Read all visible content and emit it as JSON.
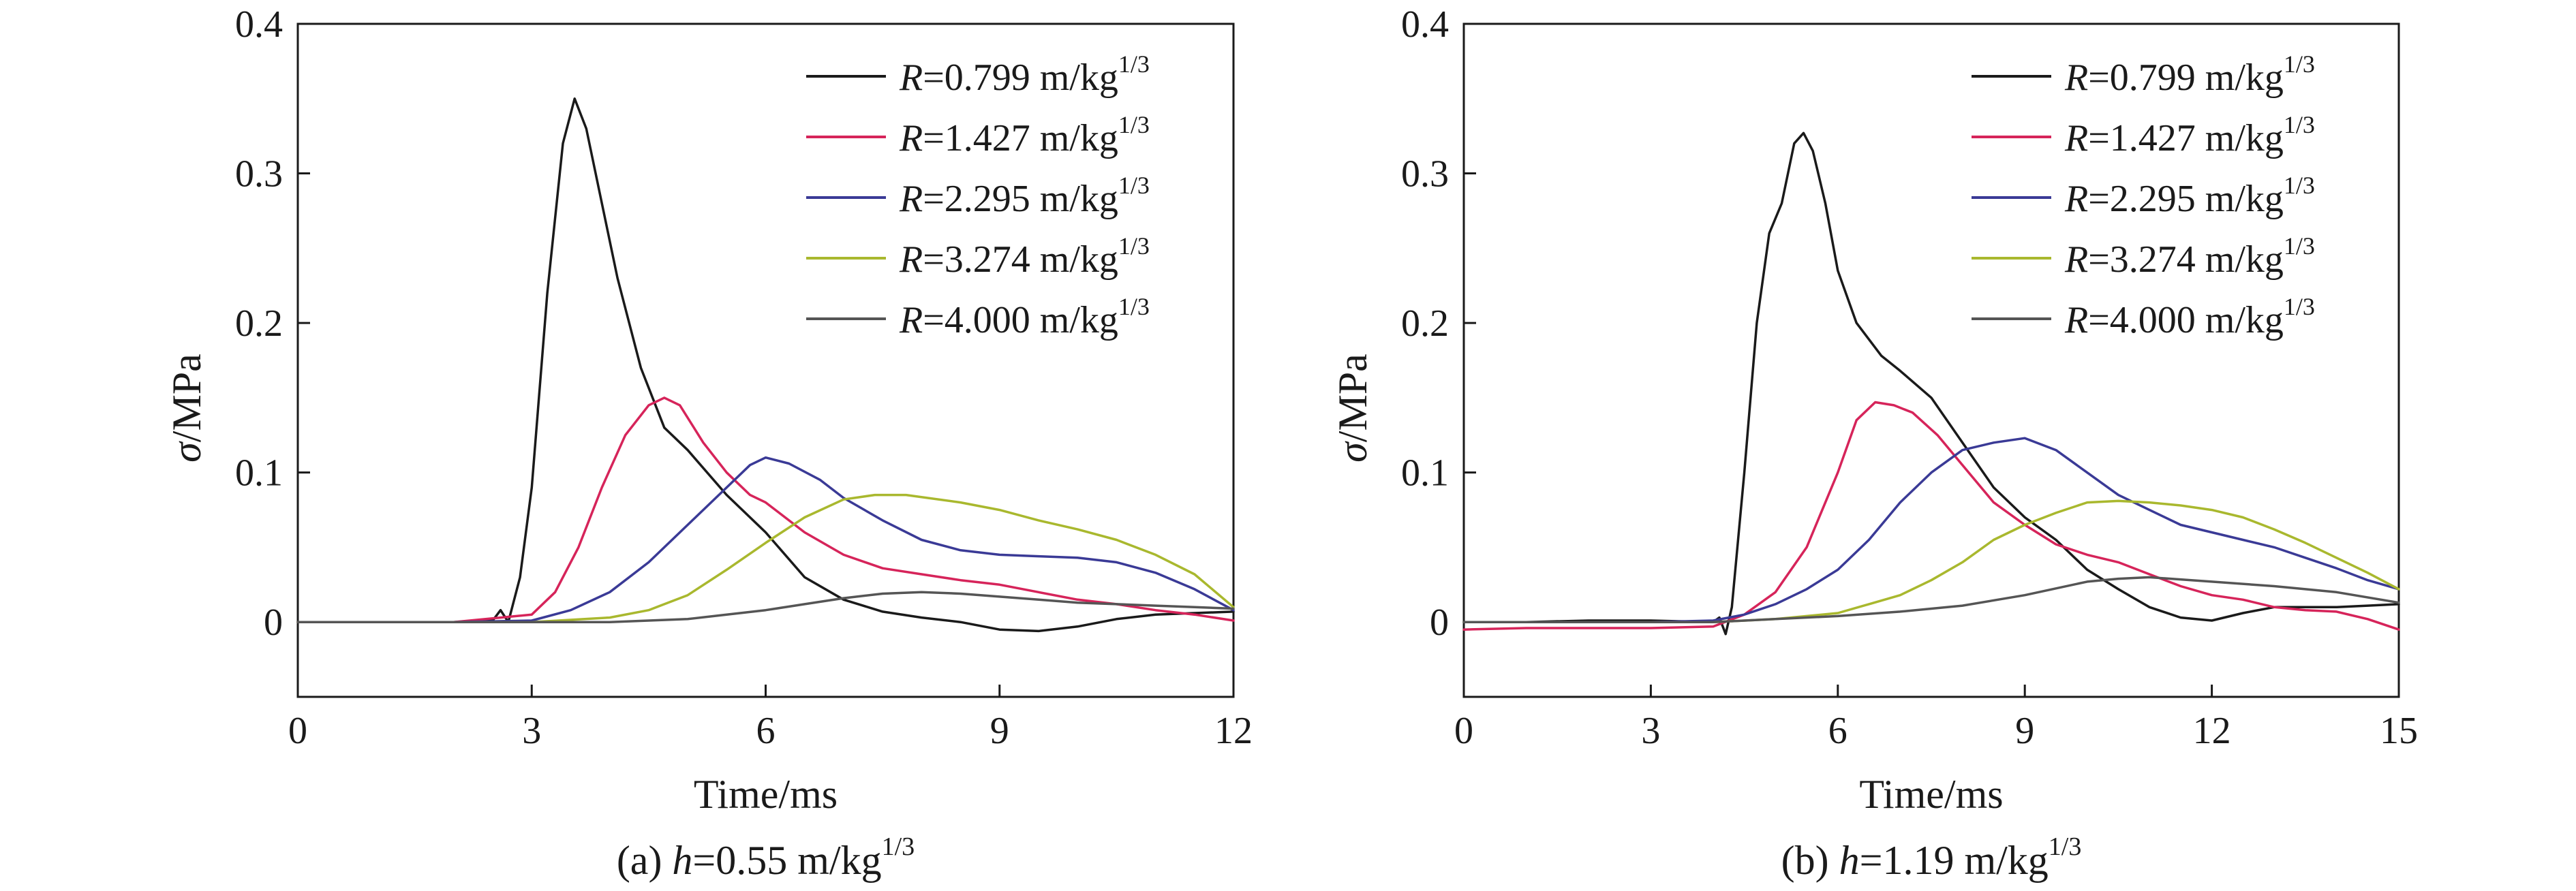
{
  "chart_data": [
    {
      "type": "line",
      "caption_prefix": "(a) ",
      "caption_var": "h",
      "caption_value": "=0.55 m/kg",
      "caption_exp": "1/3",
      "xlabel": "Time/ms",
      "ylabel_symbol": "σ",
      "ylabel_unit": "/MPa",
      "xlim": [
        0,
        12
      ],
      "ylim": [
        -0.05,
        0.4
      ],
      "xticks": [
        "0",
        "3",
        "6",
        "9",
        "12"
      ],
      "yticks": [
        "0",
        "0.1",
        "0.2",
        "0.3",
        "0.4"
      ],
      "legend_position": "top-right",
      "series": [
        {
          "var": "R",
          "name": "=0.799 m/kg",
          "exp": "1/3",
          "color": "#1a1a1a",
          "points": [
            [
              0,
              0
            ],
            [
              1,
              0
            ],
            [
              2,
              0
            ],
            [
              2.5,
              0.001
            ],
            [
              2.6,
              0.008
            ],
            [
              2.7,
              0
            ],
            [
              2.85,
              0.03
            ],
            [
              3.0,
              0.09
            ],
            [
              3.2,
              0.22
            ],
            [
              3.4,
              0.32
            ],
            [
              3.55,
              0.35
            ],
            [
              3.7,
              0.33
            ],
            [
              3.9,
              0.28
            ],
            [
              4.1,
              0.23
            ],
            [
              4.4,
              0.17
            ],
            [
              4.7,
              0.13
            ],
            [
              5.0,
              0.115
            ],
            [
              5.5,
              0.085
            ],
            [
              6.0,
              0.06
            ],
            [
              6.5,
              0.03
            ],
            [
              7.0,
              0.015
            ],
            [
              7.5,
              0.007
            ],
            [
              8.0,
              0.003
            ],
            [
              8.5,
              0
            ],
            [
              9.0,
              -0.005
            ],
            [
              9.5,
              -0.006
            ],
            [
              10.0,
              -0.003
            ],
            [
              10.5,
              0.002
            ],
            [
              11.0,
              0.005
            ],
            [
              11.5,
              0.006
            ],
            [
              12,
              0.007
            ]
          ]
        },
        {
          "var": "R",
          "name": "=1.427 m/kg",
          "exp": "1/3",
          "color": "#d6245a",
          "points": [
            [
              0,
              0
            ],
            [
              1,
              0
            ],
            [
              2,
              0
            ],
            [
              3.0,
              0.005
            ],
            [
              3.3,
              0.02
            ],
            [
              3.6,
              0.05
            ],
            [
              3.9,
              0.09
            ],
            [
              4.2,
              0.125
            ],
            [
              4.5,
              0.145
            ],
            [
              4.7,
              0.15
            ],
            [
              4.9,
              0.145
            ],
            [
              5.2,
              0.12
            ],
            [
              5.5,
              0.1
            ],
            [
              5.8,
              0.085
            ],
            [
              6.0,
              0.08
            ],
            [
              6.5,
              0.06
            ],
            [
              7.0,
              0.045
            ],
            [
              7.5,
              0.036
            ],
            [
              8.0,
              0.032
            ],
            [
              8.5,
              0.028
            ],
            [
              9.0,
              0.025
            ],
            [
              9.5,
              0.02
            ],
            [
              10.0,
              0.015
            ],
            [
              10.5,
              0.012
            ],
            [
              11.0,
              0.008
            ],
            [
              11.5,
              0.005
            ],
            [
              12,
              0.001
            ]
          ]
        },
        {
          "var": "R",
          "name": "=2.295 m/kg",
          "exp": "1/3",
          "color": "#3a3a96",
          "points": [
            [
              0,
              0
            ],
            [
              2,
              0
            ],
            [
              3.0,
              0.001
            ],
            [
              3.5,
              0.008
            ],
            [
              4.0,
              0.02
            ],
            [
              4.5,
              0.04
            ],
            [
              5.0,
              0.065
            ],
            [
              5.5,
              0.09
            ],
            [
              5.8,
              0.105
            ],
            [
              6.0,
              0.11
            ],
            [
              6.3,
              0.106
            ],
            [
              6.7,
              0.095
            ],
            [
              7.0,
              0.083
            ],
            [
              7.5,
              0.068
            ],
            [
              8.0,
              0.055
            ],
            [
              8.5,
              0.048
            ],
            [
              9.0,
              0.045
            ],
            [
              9.5,
              0.044
            ],
            [
              10.0,
              0.043
            ],
            [
              10.5,
              0.04
            ],
            [
              11.0,
              0.033
            ],
            [
              11.5,
              0.022
            ],
            [
              12,
              0.008
            ]
          ]
        },
        {
          "var": "R",
          "name": "=3.274 m/kg",
          "exp": "1/3",
          "color": "#a9b82e",
          "points": [
            [
              0,
              0
            ],
            [
              3,
              0
            ],
            [
              4.0,
              0.003
            ],
            [
              4.5,
              0.008
            ],
            [
              5.0,
              0.018
            ],
            [
              5.5,
              0.035
            ],
            [
              6.0,
              0.053
            ],
            [
              6.5,
              0.07
            ],
            [
              7.0,
              0.082
            ],
            [
              7.4,
              0.085
            ],
            [
              7.8,
              0.085
            ],
            [
              8.5,
              0.08
            ],
            [
              9.0,
              0.075
            ],
            [
              9.5,
              0.068
            ],
            [
              10.0,
              0.062
            ],
            [
              10.5,
              0.055
            ],
            [
              11.0,
              0.045
            ],
            [
              11.5,
              0.032
            ],
            [
              12,
              0.01
            ]
          ]
        },
        {
          "var": "R",
          "name": "=4.000 m/kg",
          "exp": "1/3",
          "color": "#555555",
          "points": [
            [
              0,
              0
            ],
            [
              4,
              0
            ],
            [
              5,
              0.002
            ],
            [
              5.5,
              0.005
            ],
            [
              6,
              0.008
            ],
            [
              6.5,
              0.012
            ],
            [
              7,
              0.016
            ],
            [
              7.5,
              0.019
            ],
            [
              8,
              0.02
            ],
            [
              8.5,
              0.019
            ],
            [
              9,
              0.017
            ],
            [
              9.5,
              0.015
            ],
            [
              10,
              0.013
            ],
            [
              10.5,
              0.012
            ],
            [
              11,
              0.011
            ],
            [
              11.5,
              0.01
            ],
            [
              12,
              0.009
            ]
          ]
        }
      ]
    },
    {
      "type": "line",
      "caption_prefix": "(b) ",
      "caption_var": "h",
      "caption_value": "=1.19 m/kg",
      "caption_exp": "1/3",
      "xlabel": "Time/ms",
      "ylabel_symbol": "σ",
      "ylabel_unit": "/MPa",
      "xlim": [
        0,
        15
      ],
      "ylim": [
        -0.05,
        0.4
      ],
      "xticks": [
        "0",
        "3",
        "6",
        "9",
        "12",
        "15"
      ],
      "yticks": [
        "0",
        "0.1",
        "0.2",
        "0.3",
        "0.4"
      ],
      "legend_position": "top-right",
      "series": [
        {
          "var": "R",
          "name": "=0.799 m/kg",
          "exp": "1/3",
          "color": "#1a1a1a",
          "points": [
            [
              0,
              0
            ],
            [
              1,
              0
            ],
            [
              2,
              0.001
            ],
            [
              3,
              0.001
            ],
            [
              4.0,
              0
            ],
            [
              4.1,
              0.003
            ],
            [
              4.2,
              -0.008
            ],
            [
              4.3,
              0.01
            ],
            [
              4.5,
              0.1
            ],
            [
              4.7,
              0.2
            ],
            [
              4.9,
              0.26
            ],
            [
              5.1,
              0.28
            ],
            [
              5.3,
              0.32
            ],
            [
              5.45,
              0.327
            ],
            [
              5.6,
              0.315
            ],
            [
              5.8,
              0.28
            ],
            [
              6.0,
              0.235
            ],
            [
              6.3,
              0.2
            ],
            [
              6.7,
              0.178
            ],
            [
              7.0,
              0.168
            ],
            [
              7.5,
              0.15
            ],
            [
              8.0,
              0.12
            ],
            [
              8.5,
              0.09
            ],
            [
              9.0,
              0.07
            ],
            [
              9.5,
              0.055
            ],
            [
              10.0,
              0.035
            ],
            [
              10.5,
              0.022
            ],
            [
              11.0,
              0.01
            ],
            [
              11.5,
              0.003
            ],
            [
              12.0,
              0.001
            ],
            [
              12.5,
              0.006
            ],
            [
              13.0,
              0.01
            ],
            [
              13.5,
              0.01
            ],
            [
              14.0,
              0.01
            ],
            [
              14.5,
              0.011
            ],
            [
              15,
              0.012
            ]
          ]
        },
        {
          "var": "R",
          "name": "=1.427 m/kg",
          "exp": "1/3",
          "color": "#d6245a",
          "points": [
            [
              0,
              -0.005
            ],
            [
              1,
              -0.004
            ],
            [
              2,
              -0.004
            ],
            [
              3,
              -0.004
            ],
            [
              4.0,
              -0.003
            ],
            [
              4.5,
              0.005
            ],
            [
              5.0,
              0.02
            ],
            [
              5.5,
              0.05
            ],
            [
              6.0,
              0.1
            ],
            [
              6.3,
              0.135
            ],
            [
              6.6,
              0.147
            ],
            [
              6.9,
              0.145
            ],
            [
              7.2,
              0.14
            ],
            [
              7.6,
              0.125
            ],
            [
              8.0,
              0.105
            ],
            [
              8.5,
              0.08
            ],
            [
              9.0,
              0.065
            ],
            [
              9.5,
              0.052
            ],
            [
              10.0,
              0.045
            ],
            [
              10.5,
              0.04
            ],
            [
              11.0,
              0.032
            ],
            [
              11.5,
              0.024
            ],
            [
              12.0,
              0.018
            ],
            [
              12.5,
              0.015
            ],
            [
              13.0,
              0.01
            ],
            [
              13.5,
              0.008
            ],
            [
              14.0,
              0.007
            ],
            [
              14.5,
              0.002
            ],
            [
              15,
              -0.005
            ]
          ]
        },
        {
          "var": "R",
          "name": "=2.295 m/kg",
          "exp": "1/3",
          "color": "#3a3a96",
          "points": [
            [
              0,
              0
            ],
            [
              3,
              0
            ],
            [
              4.0,
              0.001
            ],
            [
              4.5,
              0.005
            ],
            [
              5.0,
              0.012
            ],
            [
              5.5,
              0.022
            ],
            [
              6.0,
              0.035
            ],
            [
              6.5,
              0.055
            ],
            [
              7.0,
              0.08
            ],
            [
              7.5,
              0.1
            ],
            [
              8.0,
              0.115
            ],
            [
              8.5,
              0.12
            ],
            [
              9.0,
              0.123
            ],
            [
              9.5,
              0.115
            ],
            [
              10.0,
              0.1
            ],
            [
              10.5,
              0.085
            ],
            [
              11.0,
              0.075
            ],
            [
              11.5,
              0.065
            ],
            [
              12.0,
              0.06
            ],
            [
              12.5,
              0.055
            ],
            [
              13.0,
              0.05
            ],
            [
              13.5,
              0.043
            ],
            [
              14.0,
              0.036
            ],
            [
              14.5,
              0.028
            ],
            [
              15,
              0.022
            ]
          ]
        },
        {
          "var": "R",
          "name": "=3.274 m/kg",
          "exp": "1/3",
          "color": "#a9b82e",
          "points": [
            [
              0,
              0
            ],
            [
              4,
              0
            ],
            [
              5,
              0.002
            ],
            [
              6,
              0.006
            ],
            [
              6.5,
              0.012
            ],
            [
              7.0,
              0.018
            ],
            [
              7.5,
              0.028
            ],
            [
              8.0,
              0.04
            ],
            [
              8.5,
              0.055
            ],
            [
              9.0,
              0.065
            ],
            [
              9.5,
              0.073
            ],
            [
              10.0,
              0.08
            ],
            [
              10.5,
              0.081
            ],
            [
              11.0,
              0.08
            ],
            [
              11.5,
              0.078
            ],
            [
              12.0,
              0.075
            ],
            [
              12.5,
              0.07
            ],
            [
              13.0,
              0.062
            ],
            [
              13.5,
              0.053
            ],
            [
              14.0,
              0.043
            ],
            [
              14.5,
              0.033
            ],
            [
              15,
              0.022
            ]
          ]
        },
        {
          "var": "R",
          "name": "=4.000 m/kg",
          "exp": "1/3",
          "color": "#555555",
          "points": [
            [
              0,
              0
            ],
            [
              4,
              0
            ],
            [
              5,
              0.002
            ],
            [
              6,
              0.004
            ],
            [
              7,
              0.007
            ],
            [
              8,
              0.011
            ],
            [
              9,
              0.018
            ],
            [
              10,
              0.027
            ],
            [
              10.5,
              0.029
            ],
            [
              11,
              0.03
            ],
            [
              12,
              0.027
            ],
            [
              13,
              0.024
            ],
            [
              14,
              0.02
            ],
            [
              15,
              0.013
            ]
          ]
        }
      ]
    }
  ]
}
